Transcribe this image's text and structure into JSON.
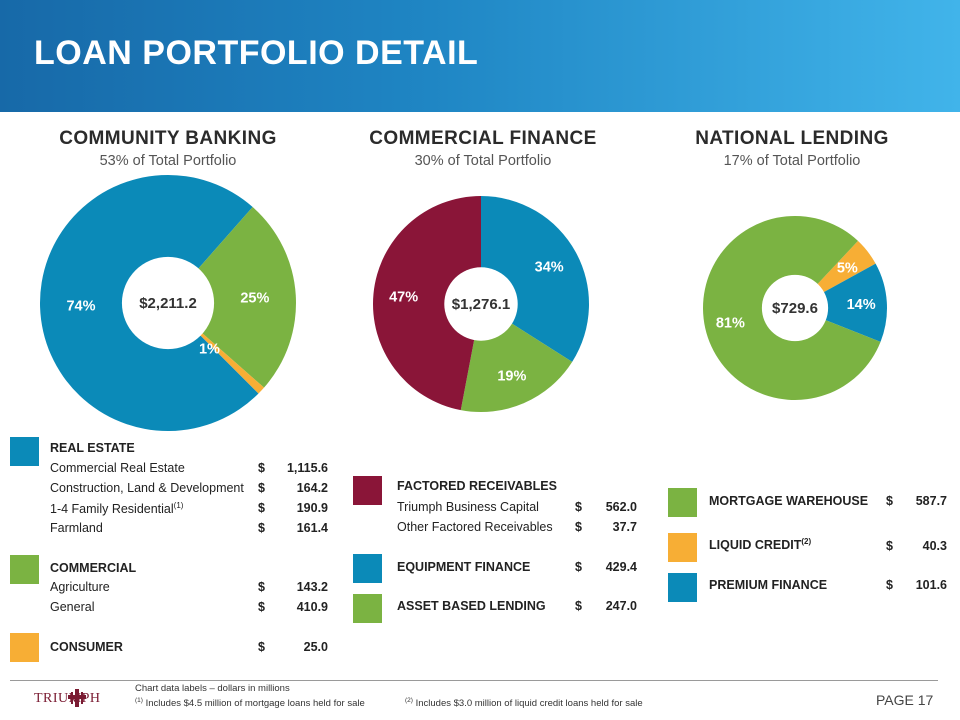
{
  "title": "LOAN PORTFOLIO DETAIL",
  "colors": {
    "blue": "#0b8ab8",
    "green": "#7bb342",
    "orange": "#f7ae35",
    "maroon": "#8a1538"
  },
  "sections": [
    {
      "title": "COMMUNITY BANKING",
      "subtitle": "53% of Total Portfolio"
    },
    {
      "title": "COMMERCIAL  FINANCE",
      "subtitle": "30% of Total Portfolio"
    },
    {
      "title": "NATIONAL  LENDING",
      "subtitle": "17% of Total Portfolio"
    }
  ],
  "chart_data": [
    {
      "type": "pie",
      "title": "COMMUNITY BANKING",
      "center_label": "$2,211.2",
      "slices": [
        {
          "label": "74%",
          "value": 74,
          "color": "#0b8ab8"
        },
        {
          "label": "25%",
          "value": 25,
          "color": "#7bb342"
        },
        {
          "label": "1%",
          "value": 1,
          "color": "#f7ae35"
        }
      ]
    },
    {
      "type": "pie",
      "title": "COMMERCIAL  FINANCE",
      "center_label": "$1,276.1",
      "slices": [
        {
          "label": "34%",
          "value": 34,
          "color": "#0b8ab8"
        },
        {
          "label": "19%",
          "value": 19,
          "color": "#7bb342"
        },
        {
          "label": "47%",
          "value": 47,
          "color": "#8a1538"
        }
      ]
    },
    {
      "type": "pie",
      "title": "NATIONAL  LENDING",
      "center_label": "$729.6",
      "slices": [
        {
          "label": "5%",
          "value": 5,
          "color": "#f7ae35"
        },
        {
          "label": "14%",
          "value": 14,
          "color": "#0b8ab8"
        },
        {
          "label": "81%",
          "value": 81,
          "color": "#7bb342"
        }
      ]
    }
  ],
  "legend": {
    "community": {
      "real_estate": "REAL ESTATE",
      "rows": [
        {
          "label": "Commercial Real Estate",
          "cur": "$",
          "amount": "1,115.6"
        },
        {
          "label": "Construction, Land & Development",
          "cur": "$",
          "amount": "164.2"
        },
        {
          "label": "1-4 Family Residential",
          "sup": "(1)",
          "cur": "$",
          "amount": "190.9"
        },
        {
          "label": "Farmland",
          "cur": "$",
          "amount": "161.4"
        }
      ],
      "commercial": "COMMERCIAL",
      "rows2": [
        {
          "label": "Agriculture",
          "cur": "$",
          "amount": "143.2"
        },
        {
          "label": "General",
          "cur": "$",
          "amount": "410.9"
        }
      ],
      "consumer": {
        "label": "CONSUMER",
        "cur": "$",
        "amount": "25.0"
      }
    },
    "commercial_finance": {
      "factored": "FACTORED RECEIVABLES",
      "rows": [
        {
          "label": "Triumph Business Capital",
          "cur": "$",
          "amount": "562.0"
        },
        {
          "label": "Other Factored Receivables",
          "cur": "$",
          "amount": "37.7"
        }
      ],
      "equipment": {
        "label": "EQUIPMENT FINANCE",
        "cur": "$",
        "amount": "429.4"
      },
      "abl": {
        "label": "ASSET BASED LENDING",
        "cur": "$",
        "amount": "247.0"
      }
    },
    "national": {
      "mortgage": {
        "label": "MORTGAGE WAREHOUSE",
        "cur": "$",
        "amount": "587.7"
      },
      "liquid": {
        "label": "LIQUID CREDIT",
        "sup": "(2)",
        "cur": "$",
        "amount": "40.3"
      },
      "premium": {
        "label": "PREMIUM FINANCE",
        "cur": "$",
        "amount": "101.6"
      }
    }
  },
  "footer": {
    "note": "Chart data labels – dollars in millions",
    "fn1_sup": "(1)",
    "fn1": " Includes $4.5 million  of mortgage loans held for sale",
    "fn2_sup": "(2)",
    "fn2": " Includes $3.0 million  of liquid credit loans held for sale",
    "logo": "TRIUMPH",
    "page": "PAGE 17"
  }
}
